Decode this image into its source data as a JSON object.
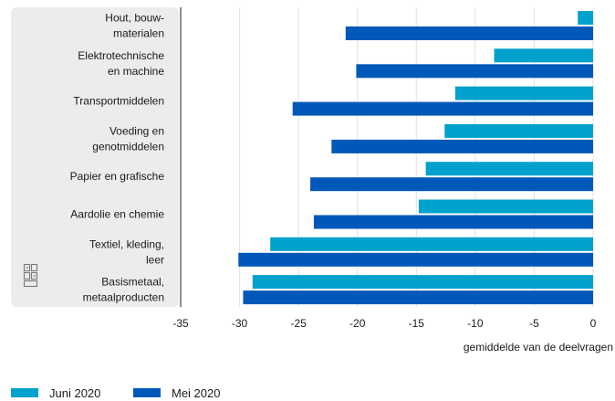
{
  "chart_data": {
    "type": "bar",
    "orientation": "horizontal",
    "categories": [
      "Hout, bouw-\nmaterialen",
      "Elektrotechnische\nen machine",
      "Transportmiddelen",
      "Voeding en\ngenotmiddelen",
      "Papier en grafische",
      "Aardolie en chemie",
      "Textiel, kleding,\nleer",
      "Basismetaal,\nmetaalproducten"
    ],
    "series": [
      {
        "name": "Juni 2020",
        "color": "#00a1cd",
        "values": [
          -1.3,
          -8.4,
          -11.7,
          -12.6,
          -14.2,
          -14.8,
          -27.4,
          -28.9
        ]
      },
      {
        "name": "Mei 2020",
        "color": "#0058b8",
        "values": [
          -21.0,
          -20.1,
          -25.5,
          -22.2,
          -24.0,
          -23.7,
          -30.1,
          -29.7
        ]
      }
    ],
    "xticks": [
      -35,
      -30,
      -25,
      -20,
      -15,
      -10,
      -5,
      0
    ],
    "xlim": [
      -35,
      0
    ],
    "xlabel": "gemiddelde van de deelvragen",
    "grid": true,
    "legend_position": "bottom-left",
    "logo_icon": "cbs-logo-icon"
  }
}
